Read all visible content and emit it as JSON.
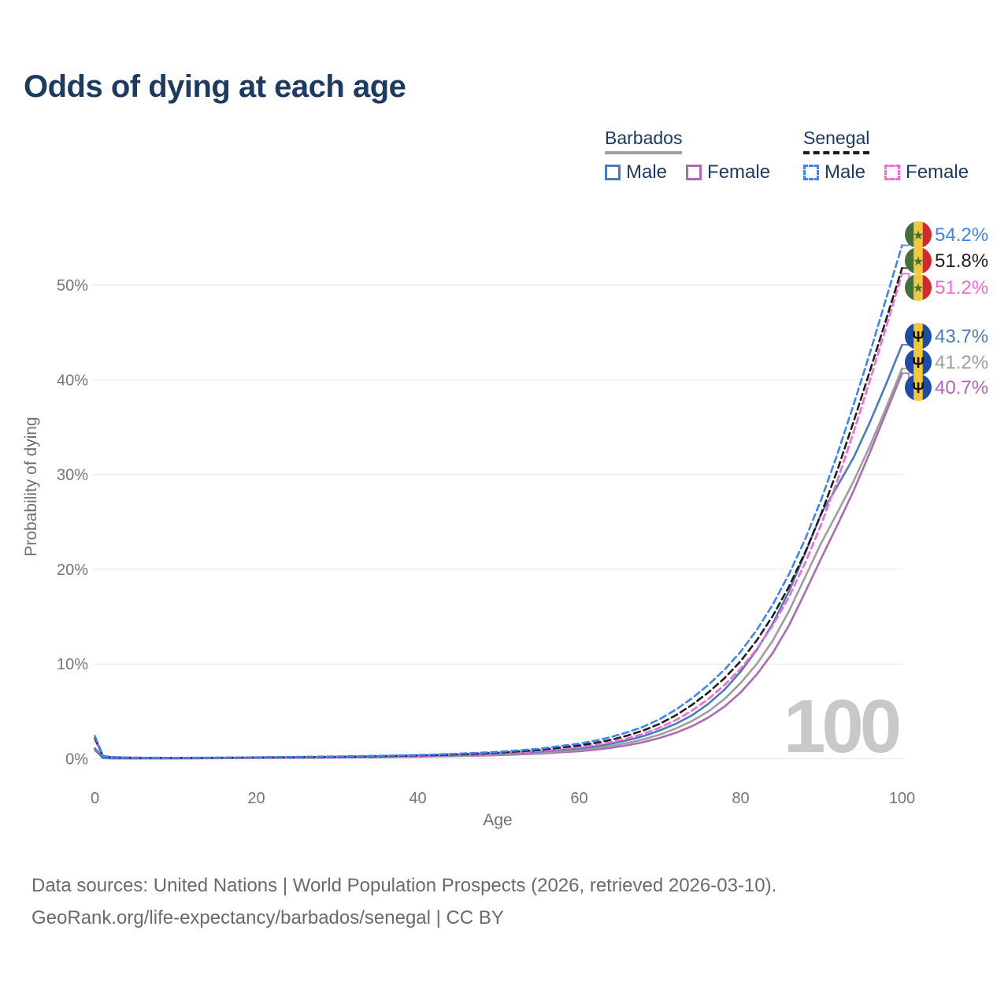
{
  "title": "Odds of dying at each age",
  "watermark": "100",
  "legend": {
    "groups": [
      {
        "name": "Barbados",
        "dashed": false,
        "underline_color": "#9e9e9e",
        "items": [
          {
            "label": "Male",
            "color": "#4a7cba"
          },
          {
            "label": "Female",
            "color": "#ab6ab3"
          }
        ]
      },
      {
        "name": "Senegal",
        "dashed": true,
        "underline_color": "#1a1a1a",
        "items": [
          {
            "label": "Male",
            "color": "#3d85f2"
          },
          {
            "label": "Female",
            "color": "#f768d9"
          }
        ]
      }
    ]
  },
  "footer": {
    "line1": "Data sources: United Nations | World Population Prospects (2026, retrieved 2026-03-10).",
    "line2": "GeoRank.org/life-expectancy/barbados/senegal | CC BY"
  },
  "chart_data": {
    "type": "line",
    "title": "Odds of dying at each age",
    "xlabel": "Age",
    "ylabel": "Probability of dying",
    "xlim": [
      0,
      100
    ],
    "ylim": [
      0,
      55
    ],
    "x_ticks": [
      0,
      20,
      40,
      60,
      80,
      100
    ],
    "y_ticks": [
      0,
      10,
      20,
      30,
      40,
      50
    ],
    "y_tick_suffix": "%",
    "grid": true,
    "legend_position": "top-right",
    "x": [
      0,
      1,
      2,
      5,
      10,
      15,
      20,
      25,
      30,
      35,
      40,
      45,
      50,
      55,
      60,
      62,
      64,
      66,
      68,
      70,
      72,
      74,
      76,
      78,
      80,
      82,
      84,
      86,
      88,
      90,
      92,
      94,
      96,
      98,
      100
    ],
    "series": [
      {
        "name": "Senegal Male",
        "country": "Senegal",
        "sex": "Male",
        "color": "#3d85f2",
        "dash": "8 5",
        "flag": "senegal",
        "end_label": "54.2%",
        "end_value": 54.2,
        "values": [
          2.4,
          0.3,
          0.18,
          0.12,
          0.1,
          0.12,
          0.16,
          0.2,
          0.25,
          0.31,
          0.4,
          0.53,
          0.73,
          1.05,
          1.6,
          1.9,
          2.3,
          2.8,
          3.4,
          4.2,
          5.2,
          6.4,
          7.8,
          9.4,
          11.3,
          13.6,
          16.3,
          19.5,
          23.2,
          27.4,
          32.2,
          37.4,
          42.8,
          48.5,
          54.2
        ]
      },
      {
        "name": "Senegal Both sexes",
        "country": "Senegal",
        "sex": "Both",
        "color": "#1f1f1f",
        "dash": "8 5",
        "flag": "senegal",
        "end_label": "51.8%",
        "end_value": 51.8,
        "values": [
          2.2,
          0.28,
          0.16,
          0.11,
          0.09,
          0.11,
          0.14,
          0.17,
          0.21,
          0.27,
          0.35,
          0.46,
          0.64,
          0.92,
          1.4,
          1.67,
          2.0,
          2.45,
          3.0,
          3.7,
          4.6,
          5.7,
          7.0,
          8.5,
          10.3,
          12.5,
          15.1,
          18.2,
          21.8,
          25.9,
          30.5,
          35.6,
          40.9,
          46.3,
          51.8
        ]
      },
      {
        "name": "Senegal Female",
        "country": "Senegal",
        "sex": "Female",
        "color": "#f768d9",
        "dash": "8 5",
        "flag": "senegal",
        "end_label": "51.2%",
        "end_value": 51.2,
        "values": [
          2.0,
          0.25,
          0.15,
          0.1,
          0.08,
          0.1,
          0.12,
          0.15,
          0.18,
          0.23,
          0.3,
          0.4,
          0.56,
          0.8,
          1.2,
          1.45,
          1.75,
          2.15,
          2.65,
          3.3,
          4.1,
          5.1,
          6.3,
          7.8,
          9.5,
          11.6,
          14.1,
          17.1,
          20.7,
          24.8,
          29.4,
          34.5,
          39.9,
          45.5,
          51.2
        ]
      },
      {
        "name": "Barbados Male",
        "country": "Barbados",
        "sex": "Male",
        "color": "#4a7cba",
        "dash": null,
        "flag": "barbados",
        "end_label": "43.7%",
        "end_value": 43.7,
        "values": [
          1.1,
          0.09,
          0.06,
          0.045,
          0.05,
          0.08,
          0.12,
          0.15,
          0.18,
          0.22,
          0.28,
          0.38,
          0.52,
          0.75,
          1.1,
          1.3,
          1.6,
          1.95,
          2.4,
          3.0,
          3.7,
          4.6,
          5.8,
          7.3,
          9.2,
          11.5,
          14.3,
          17.7,
          21.7,
          25.9,
          28.8,
          31.8,
          35.5,
          39.5,
          43.7
        ]
      },
      {
        "name": "Barbados Both sexes",
        "country": "Barbados",
        "sex": "Both",
        "color": "#9e9e9e",
        "dash": null,
        "flag": "barbados",
        "end_label": "41.2%",
        "end_value": 41.2,
        "values": [
          1.0,
          0.08,
          0.05,
          0.04,
          0.04,
          0.07,
          0.1,
          0.12,
          0.15,
          0.19,
          0.24,
          0.32,
          0.44,
          0.64,
          0.94,
          1.12,
          1.36,
          1.66,
          2.05,
          2.55,
          3.2,
          4.0,
          5.0,
          6.3,
          8.0,
          10.0,
          12.5,
          15.6,
          19.2,
          22.8,
          26.0,
          29.3,
          33.0,
          37.0,
          41.2
        ]
      },
      {
        "name": "Barbados Female",
        "country": "Barbados",
        "sex": "Female",
        "color": "#ab6ab3",
        "dash": null,
        "flag": "barbados",
        "end_label": "40.7%",
        "end_value": 40.7,
        "values": [
          0.9,
          0.07,
          0.045,
          0.035,
          0.035,
          0.055,
          0.08,
          0.1,
          0.13,
          0.16,
          0.21,
          0.28,
          0.38,
          0.55,
          0.8,
          0.96,
          1.16,
          1.42,
          1.76,
          2.2,
          2.75,
          3.45,
          4.35,
          5.5,
          7.0,
          8.9,
          11.2,
          14.1,
          17.6,
          21.2,
          24.7,
          28.3,
          32.3,
          36.5,
          40.7
        ]
      }
    ]
  }
}
